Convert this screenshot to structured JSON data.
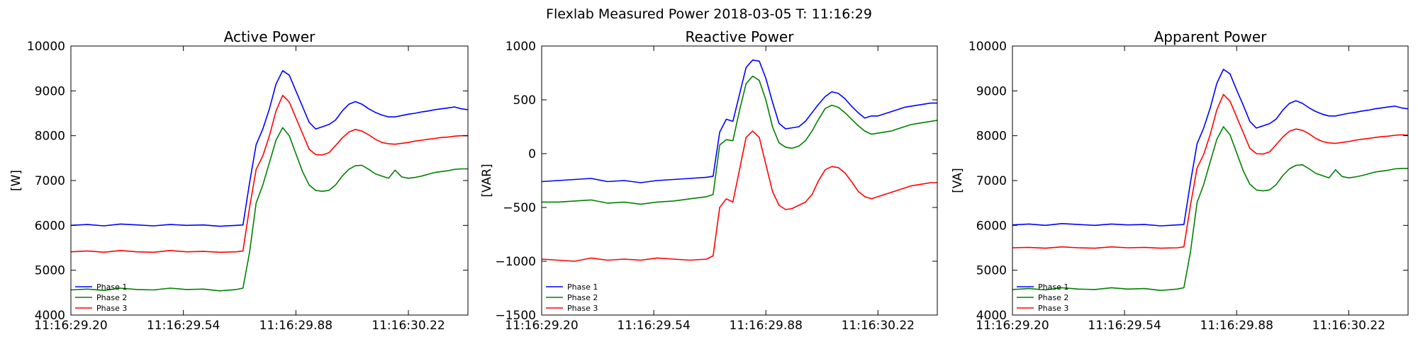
{
  "figure": {
    "title": "Flexlab Measured Power 2018-03-05 T: 11:16:29"
  },
  "chart_data": [
    {
      "type": "line",
      "title": "Active Power",
      "xlabel": "",
      "ylabel": "[W]",
      "xlim": [
        0,
        1.2
      ],
      "x_tick_values": [
        0,
        0.34,
        0.68,
        1.02
      ],
      "x_tick_labels": [
        "11:16:29.20",
        "11:16:29.54",
        "11:16:29.88",
        "11:16:30.22"
      ],
      "ylim": [
        4000,
        10000
      ],
      "y_ticks": [
        4000,
        5000,
        6000,
        7000,
        8000,
        9000,
        10000
      ],
      "y_tick_labels": [
        "4000",
        "5000",
        "6000",
        "7000",
        "8000",
        "9000",
        "10000"
      ],
      "grid": false,
      "legend_position": "lower-left",
      "x": [
        0,
        0.05,
        0.1,
        0.15,
        0.2,
        0.25,
        0.3,
        0.35,
        0.4,
        0.45,
        0.5,
        0.52,
        0.54,
        0.56,
        0.58,
        0.6,
        0.62,
        0.64,
        0.66,
        0.68,
        0.7,
        0.72,
        0.74,
        0.76,
        0.78,
        0.8,
        0.82,
        0.84,
        0.86,
        0.88,
        0.9,
        0.92,
        0.94,
        0.96,
        0.98,
        1.0,
        1.02,
        1.04,
        1.06,
        1.08,
        1.1,
        1.12,
        1.14,
        1.16,
        1.18,
        1.2
      ],
      "series": [
        {
          "name": "Phase 1",
          "color": "#0000ff",
          "values": [
            6000,
            6020,
            5990,
            6030,
            6010,
            5990,
            6020,
            6000,
            6010,
            5980,
            6000,
            6010,
            6950,
            7800,
            8150,
            8600,
            9150,
            9450,
            9350,
            9000,
            8650,
            8300,
            8150,
            8200,
            8250,
            8350,
            8550,
            8700,
            8760,
            8700,
            8600,
            8520,
            8460,
            8420,
            8420,
            8450,
            8480,
            8500,
            8530,
            8550,
            8580,
            8600,
            8620,
            8640,
            8600,
            8580
          ]
        },
        {
          "name": "Phase 2",
          "color": "#008000",
          "values": [
            4560,
            4580,
            4550,
            4600,
            4570,
            4560,
            4600,
            4570,
            4580,
            4540,
            4570,
            4600,
            5400,
            6500,
            6900,
            7400,
            7900,
            8180,
            8000,
            7600,
            7200,
            6900,
            6780,
            6760,
            6780,
            6900,
            7100,
            7250,
            7330,
            7340,
            7250,
            7150,
            7100,
            7050,
            7230,
            7080,
            7050,
            7070,
            7100,
            7140,
            7180,
            7200,
            7220,
            7250,
            7260,
            7260
          ]
        },
        {
          "name": "Phase 3",
          "color": "#ff0000",
          "values": [
            5410,
            5430,
            5400,
            5440,
            5410,
            5400,
            5440,
            5410,
            5420,
            5400,
            5410,
            5430,
            6400,
            7250,
            7550,
            8000,
            8550,
            8900,
            8750,
            8400,
            8050,
            7700,
            7580,
            7570,
            7620,
            7780,
            7950,
            8080,
            8140,
            8100,
            8020,
            7920,
            7850,
            7820,
            7810,
            7830,
            7850,
            7880,
            7900,
            7920,
            7940,
            7960,
            7970,
            7990,
            8000,
            8000
          ]
        }
      ]
    },
    {
      "type": "line",
      "title": "Reactive Power",
      "xlabel": "",
      "ylabel": "[VAR]",
      "xlim": [
        0,
        1.2
      ],
      "x_tick_values": [
        0,
        0.34,
        0.68,
        1.02
      ],
      "x_tick_labels": [
        "11:16:29.20",
        "11:16:29.54",
        "11:16:29.88",
        "11:16:30.22"
      ],
      "ylim": [
        -1500,
        1000
      ],
      "y_ticks": [
        -1500,
        -1000,
        -500,
        0,
        500,
        1000
      ],
      "y_tick_labels": [
        "−1500",
        "−1000",
        "−500",
        "0",
        "500",
        "1000"
      ],
      "grid": false,
      "legend_position": "lower-left",
      "x": [
        0,
        0.05,
        0.1,
        0.15,
        0.2,
        0.25,
        0.3,
        0.35,
        0.4,
        0.45,
        0.5,
        0.52,
        0.54,
        0.56,
        0.58,
        0.6,
        0.62,
        0.64,
        0.66,
        0.68,
        0.7,
        0.72,
        0.74,
        0.76,
        0.78,
        0.8,
        0.82,
        0.84,
        0.86,
        0.88,
        0.9,
        0.92,
        0.94,
        0.96,
        0.98,
        1.0,
        1.02,
        1.04,
        1.06,
        1.08,
        1.1,
        1.12,
        1.14,
        1.16,
        1.18,
        1.2
      ],
      "series": [
        {
          "name": "Phase 1",
          "color": "#0000ff",
          "values": [
            -260,
            -250,
            -240,
            -230,
            -260,
            -250,
            -270,
            -250,
            -240,
            -230,
            -220,
            -210,
            200,
            320,
            300,
            550,
            800,
            870,
            860,
            700,
            480,
            280,
            230,
            240,
            250,
            300,
            380,
            460,
            530,
            575,
            560,
            510,
            440,
            380,
            330,
            350,
            350,
            370,
            390,
            410,
            430,
            440,
            450,
            460,
            470,
            470
          ]
        },
        {
          "name": "Phase 2",
          "color": "#008000",
          "values": [
            -450,
            -450,
            -440,
            -430,
            -460,
            -450,
            -470,
            -450,
            -440,
            -420,
            -400,
            -380,
            80,
            130,
            120,
            400,
            650,
            720,
            680,
            500,
            250,
            100,
            60,
            50,
            70,
            120,
            210,
            320,
            420,
            450,
            430,
            380,
            320,
            260,
            210,
            180,
            190,
            200,
            210,
            230,
            250,
            270,
            280,
            290,
            300,
            310
          ]
        },
        {
          "name": "Phase 3",
          "color": "#ff0000",
          "values": [
            -980,
            -990,
            -1000,
            -970,
            -990,
            -980,
            -990,
            -970,
            -980,
            -990,
            -980,
            -950,
            -500,
            -420,
            -450,
            -150,
            150,
            210,
            150,
            -100,
            -350,
            -480,
            -520,
            -510,
            -480,
            -450,
            -380,
            -250,
            -150,
            -120,
            -130,
            -180,
            -260,
            -350,
            -400,
            -420,
            -400,
            -380,
            -360,
            -340,
            -320,
            -300,
            -290,
            -280,
            -270,
            -270
          ]
        }
      ]
    },
    {
      "type": "line",
      "title": "Apparent Power",
      "xlabel": "",
      "ylabel": "[VA]",
      "xlim": [
        0,
        1.2
      ],
      "x_tick_values": [
        0,
        0.34,
        0.68,
        1.02
      ],
      "x_tick_labels": [
        "11:16:29.20",
        "11:16:29.54",
        "11:16:29.88",
        "11:16:30.22"
      ],
      "ylim": [
        4000,
        10000
      ],
      "y_ticks": [
        4000,
        5000,
        6000,
        7000,
        8000,
        9000,
        10000
      ],
      "y_tick_labels": [
        "4000",
        "5000",
        "6000",
        "7000",
        "8000",
        "9000",
        "10000"
      ],
      "grid": false,
      "legend_position": "lower-left",
      "x": [
        0,
        0.05,
        0.1,
        0.15,
        0.2,
        0.25,
        0.3,
        0.35,
        0.4,
        0.45,
        0.5,
        0.52,
        0.54,
        0.56,
        0.58,
        0.6,
        0.62,
        0.64,
        0.66,
        0.68,
        0.7,
        0.72,
        0.74,
        0.76,
        0.78,
        0.8,
        0.82,
        0.84,
        0.86,
        0.88,
        0.9,
        0.92,
        0.94,
        0.96,
        0.98,
        1.0,
        1.02,
        1.04,
        1.06,
        1.08,
        1.1,
        1.12,
        1.14,
        1.16,
        1.18,
        1.2
      ],
      "series": [
        {
          "name": "Phase 1",
          "color": "#0000ff",
          "values": [
            6010,
            6030,
            6000,
            6040,
            6020,
            6000,
            6030,
            6010,
            6020,
            5990,
            6010,
            6020,
            6960,
            7820,
            8170,
            8620,
            9170,
            9480,
            9380,
            9020,
            8680,
            8320,
            8170,
            8220,
            8270,
            8370,
            8570,
            8720,
            8780,
            8720,
            8620,
            8540,
            8480,
            8440,
            8440,
            8470,
            8500,
            8520,
            8550,
            8570,
            8600,
            8620,
            8640,
            8660,
            8620,
            8600
          ]
        },
        {
          "name": "Phase 2",
          "color": "#008000",
          "values": [
            4570,
            4590,
            4560,
            4610,
            4580,
            4570,
            4610,
            4580,
            4590,
            4550,
            4580,
            4610,
            5410,
            6510,
            6910,
            7420,
            7920,
            8200,
            8020,
            7620,
            7220,
            6920,
            6790,
            6770,
            6790,
            6910,
            7110,
            7260,
            7340,
            7350,
            7260,
            7160,
            7110,
            7060,
            7240,
            7090,
            7060,
            7080,
            7110,
            7150,
            7190,
            7210,
            7230,
            7260,
            7270,
            7270
          ]
        },
        {
          "name": "Phase 3",
          "color": "#ff0000",
          "values": [
            5500,
            5510,
            5490,
            5520,
            5500,
            5490,
            5520,
            5500,
            5510,
            5490,
            5500,
            5520,
            6450,
            7280,
            7580,
            8030,
            8580,
            8920,
            8770,
            8420,
            8070,
            7720,
            7600,
            7590,
            7640,
            7800,
            7970,
            8100,
            8150,
            8120,
            8040,
            7940,
            7870,
            7840,
            7830,
            7850,
            7870,
            7900,
            7920,
            7940,
            7960,
            7980,
            7990,
            8010,
            8020,
            8010
          ]
        }
      ]
    }
  ]
}
